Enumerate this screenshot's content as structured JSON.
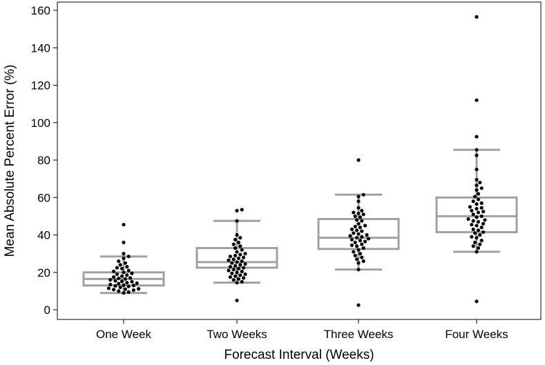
{
  "chart_data": {
    "type": "box",
    "title": "",
    "xlabel": "Forecast Interval (Weeks)",
    "ylabel": "Mean Absolute Percent Error (%)",
    "ylim": [
      -5,
      163
    ],
    "yticks": [
      0,
      20,
      40,
      60,
      80,
      100,
      120,
      140,
      160
    ],
    "categories": [
      "One Week",
      "Two Weeks",
      "Three Weeks",
      "Four Weeks"
    ],
    "boxes": [
      {
        "category": "One Week",
        "whisker_low": 9,
        "q1": 13,
        "median": 16.5,
        "q3": 20,
        "whisker_high": 28.5
      },
      {
        "category": "Two Weeks",
        "whisker_low": 14.5,
        "q1": 22.5,
        "median": 25.5,
        "q3": 33,
        "whisker_high": 47.5
      },
      {
        "category": "Three Weeks",
        "whisker_low": 21.5,
        "q1": 32.5,
        "median": 38.5,
        "q3": 48.5,
        "whisker_high": 61.5
      },
      {
        "category": "Four Weeks",
        "whisker_low": 31,
        "q1": 41.5,
        "median": 50,
        "q3": 60,
        "whisker_high": 85.5
      }
    ],
    "points": [
      [
        45.5,
        36,
        30,
        28.5,
        27.5,
        26,
        25,
        24,
        23,
        22.5,
        22,
        21,
        20.5,
        20,
        19.5,
        19,
        18.5,
        18,
        17.5,
        17,
        16.8,
        16.5,
        16,
        15.5,
        15.2,
        15,
        14.5,
        14.2,
        14,
        13.5,
        13.2,
        13,
        12.8,
        12.5,
        12,
        11.5,
        11.2,
        11,
        10.8,
        10.5,
        10,
        9.5,
        9
      ],
      [
        53.5,
        53,
        47.5,
        40,
        38.5,
        37.5,
        36,
        35,
        34,
        33,
        32,
        31,
        30,
        29.5,
        29,
        28.5,
        28,
        27.5,
        27,
        26.5,
        26,
        25.5,
        25,
        24.5,
        24,
        23.5,
        23,
        22.5,
        22,
        21.5,
        21,
        20.5,
        20,
        19.5,
        19,
        18.5,
        18,
        17.5,
        17,
        16.5,
        16,
        15,
        14.5,
        5
      ],
      [
        80,
        61.5,
        60.5,
        58,
        54.5,
        53,
        52,
        51.5,
        51,
        50,
        49.5,
        48,
        47.5,
        46,
        45,
        44.5,
        44,
        43,
        42.5,
        42,
        41,
        40.5,
        40,
        39.5,
        39,
        38.5,
        38,
        37.5,
        37,
        36.5,
        36,
        35,
        34.5,
        34,
        33,
        32,
        31,
        30,
        29,
        28,
        27,
        26,
        25,
        21.5,
        2.5
      ],
      [
        156.5,
        112,
        92.5,
        85.5,
        82.5,
        75,
        69.5,
        68,
        66.5,
        65,
        64,
        62,
        60.5,
        59,
        58,
        57,
        56.5,
        55,
        54.5,
        54,
        53,
        52.5,
        52,
        51,
        50,
        49.5,
        48.5,
        48,
        47.5,
        47,
        46,
        45.5,
        45,
        44,
        43,
        42.5,
        41.5,
        41,
        40,
        39,
        38.5,
        37,
        36,
        35,
        34,
        33,
        31,
        4.5
      ]
    ],
    "colors": {
      "box": "#a0a0a0",
      "point": "#000000",
      "frame": "#000000"
    }
  }
}
